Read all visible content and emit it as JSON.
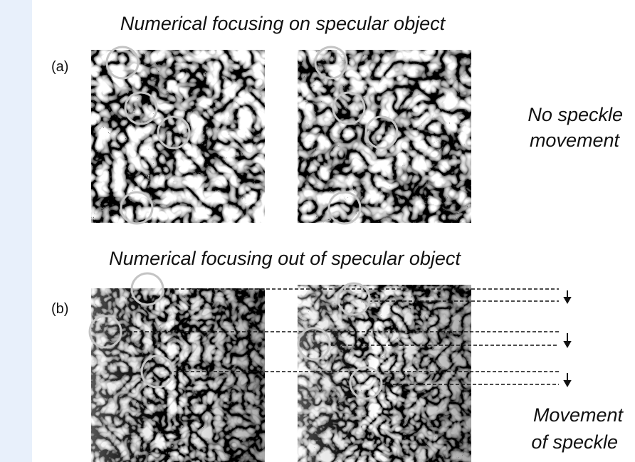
{
  "figure": {
    "panels": [
      {
        "label": "(a)",
        "title": "Numerical focusing on specular object",
        "note": [
          "No speckle",
          "movement"
        ]
      },
      {
        "label": "(b)",
        "title": "Numerical focusing out of specular object",
        "note": [
          "Movement",
          "of speckle"
        ]
      }
    ]
  }
}
